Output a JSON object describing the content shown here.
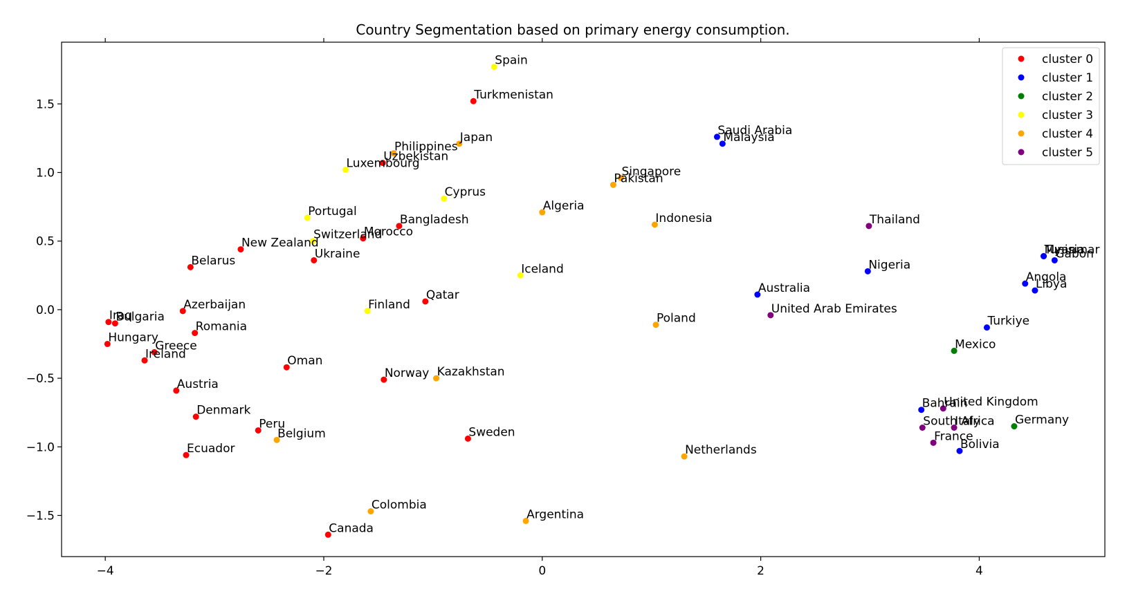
{
  "chart_data": {
    "type": "scatter",
    "title": "Country Segmentation based on primary energy consumption.",
    "xlabel": "",
    "ylabel": "",
    "xlim": [
      -4.4,
      5.15
    ],
    "ylim": [
      -1.8,
      1.95
    ],
    "xticks": [
      -4,
      -2,
      0,
      2,
      4
    ],
    "xtick_labels": [
      "−4",
      "−2",
      "0",
      "2",
      "4"
    ],
    "yticks": [
      -1.5,
      -1.0,
      -0.5,
      0.0,
      0.5,
      1.0,
      1.5
    ],
    "ytick_labels": [
      "−1.5",
      "−1.0",
      "−0.5",
      "0.0",
      "0.5",
      "1.0",
      "1.5"
    ],
    "grid": false,
    "legend_position": "top-right",
    "series": [
      {
        "name": "cluster 0",
        "color": "#ff0000",
        "points": [
          {
            "label": "Turkmenistan",
            "x": -0.63,
            "y": 1.52
          },
          {
            "label": "Uzbekistan",
            "x": -1.46,
            "y": 1.07
          },
          {
            "label": "Bangladesh",
            "x": -1.31,
            "y": 0.61
          },
          {
            "label": "Morocco",
            "x": -1.64,
            "y": 0.52
          },
          {
            "label": "New Zealand",
            "x": -2.76,
            "y": 0.44
          },
          {
            "label": "Ukraine",
            "x": -2.09,
            "y": 0.36
          },
          {
            "label": "Belarus",
            "x": -3.22,
            "y": 0.31
          },
          {
            "label": "Qatar",
            "x": -1.07,
            "y": 0.06
          },
          {
            "label": "Azerbaijan",
            "x": -3.29,
            "y": -0.01
          },
          {
            "label": "Iraq",
            "x": -3.97,
            "y": -0.09
          },
          {
            "label": "Bulgaria",
            "x": -3.91,
            "y": -0.1
          },
          {
            "label": "Romania",
            "x": -3.18,
            "y": -0.17
          },
          {
            "label": "Hungary",
            "x": -3.98,
            "y": -0.25
          },
          {
            "label": "Greece",
            "x": -3.55,
            "y": -0.31
          },
          {
            "label": "Ireland",
            "x": -3.64,
            "y": -0.37
          },
          {
            "label": "Oman",
            "x": -2.34,
            "y": -0.42
          },
          {
            "label": "Norway",
            "x": -1.45,
            "y": -0.51
          },
          {
            "label": "Austria",
            "x": -3.35,
            "y": -0.59
          },
          {
            "label": "Denmark",
            "x": -3.17,
            "y": -0.78
          },
          {
            "label": "Peru",
            "x": -2.6,
            "y": -0.88
          },
          {
            "label": "Sweden",
            "x": -0.68,
            "y": -0.94
          },
          {
            "label": "Ecuador",
            "x": -3.26,
            "y": -1.06
          },
          {
            "label": "Canada",
            "x": -1.96,
            "y": -1.64
          }
        ]
      },
      {
        "name": "cluster 1",
        "color": "#0000ff",
        "points": [
          {
            "label": "Saudi Arabia",
            "x": 1.6,
            "y": 1.26
          },
          {
            "label": "Malaysia",
            "x": 1.65,
            "y": 1.21
          },
          {
            "label": "Tunisia",
            "x": 4.59,
            "y": 0.39
          },
          {
            "label": "Myanmar",
            "x": 4.59,
            "y": 0.39
          },
          {
            "label": "Gabon",
            "x": 4.69,
            "y": 0.36
          },
          {
            "label": "Nigeria",
            "x": 2.98,
            "y": 0.28
          },
          {
            "label": "Angola",
            "x": 4.42,
            "y": 0.19
          },
          {
            "label": "Libya",
            "x": 4.51,
            "y": 0.14
          },
          {
            "label": "Australia",
            "x": 1.97,
            "y": 0.11
          },
          {
            "label": "Turkiye",
            "x": 4.07,
            "y": -0.13
          },
          {
            "label": "Bahrain",
            "x": 3.47,
            "y": -0.73
          },
          {
            "label": "Bolivia",
            "x": 3.82,
            "y": -1.03
          }
        ]
      },
      {
        "name": "cluster 2",
        "color": "#008000",
        "points": [
          {
            "label": "Mexico",
            "x": 3.77,
            "y": -0.3
          },
          {
            "label": "Germany",
            "x": 4.32,
            "y": -0.85
          }
        ]
      },
      {
        "name": "cluster 3",
        "color": "#ffff00",
        "points": [
          {
            "label": "Spain",
            "x": -0.44,
            "y": 1.77
          },
          {
            "label": "Luxembourg",
            "x": -1.8,
            "y": 1.02
          },
          {
            "label": "Cyprus",
            "x": -0.9,
            "y": 0.81
          },
          {
            "label": "Portugal",
            "x": -2.15,
            "y": 0.67
          },
          {
            "label": "Switzerland",
            "x": -2.1,
            "y": 0.5
          },
          {
            "label": "Iceland",
            "x": -0.2,
            "y": 0.25
          },
          {
            "label": "Finland",
            "x": -1.6,
            "y": -0.01
          }
        ]
      },
      {
        "name": "cluster 4",
        "color": "#ffa500",
        "points": [
          {
            "label": "Japan",
            "x": -0.76,
            "y": 1.21
          },
          {
            "label": "Philippines",
            "x": -1.36,
            "y": 1.14
          },
          {
            "label": "Singapore",
            "x": 0.72,
            "y": 0.96
          },
          {
            "label": "Pakistan",
            "x": 0.65,
            "y": 0.91
          },
          {
            "label": "Algeria",
            "x": 0.0,
            "y": 0.71
          },
          {
            "label": "Indonesia",
            "x": 1.03,
            "y": 0.62
          },
          {
            "label": "Poland",
            "x": 1.04,
            "y": -0.11
          },
          {
            "label": "Kazakhstan",
            "x": -0.97,
            "y": -0.5
          },
          {
            "label": "Belgium",
            "x": -2.43,
            "y": -0.95
          },
          {
            "label": "Netherlands",
            "x": 1.3,
            "y": -1.07
          },
          {
            "label": "Colombia",
            "x": -1.57,
            "y": -1.47
          },
          {
            "label": "Argentina",
            "x": -0.15,
            "y": -1.54
          }
        ]
      },
      {
        "name": "cluster 5",
        "color": "#800080",
        "points": [
          {
            "label": "Thailand",
            "x": 2.99,
            "y": 0.61
          },
          {
            "label": "United Arab Emirates",
            "x": 2.09,
            "y": -0.04
          },
          {
            "label": "United Kingdom",
            "x": 3.67,
            "y": -0.72
          },
          {
            "label": "South Africa",
            "x": 3.48,
            "y": -0.86
          },
          {
            "label": "Italy",
            "x": 3.77,
            "y": -0.86
          },
          {
            "label": "France",
            "x": 3.58,
            "y": -0.97
          }
        ]
      }
    ]
  }
}
